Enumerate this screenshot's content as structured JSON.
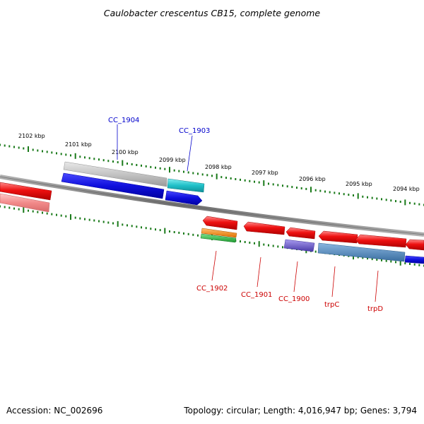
{
  "title": "Caulobacter crescentus CB15, complete genome",
  "footer": {
    "accession": "Accession: NC_002696",
    "summary": "Topology: circular; Length: 4,016,947 bp; Genes: 3,794"
  },
  "ticks": [
    {
      "label": "2102 kbp"
    },
    {
      "label": "2101 kbp"
    },
    {
      "label": "2100 kbp"
    },
    {
      "label": "2099 kbp"
    },
    {
      "label": "2098 kbp"
    },
    {
      "label": "2097 kbp"
    },
    {
      "label": "2096 kbp"
    },
    {
      "label": "2095 kbp"
    },
    {
      "label": "2094 kbp"
    }
  ],
  "forward_labels": [
    {
      "name": "CC_1904"
    },
    {
      "name": "CC_1903"
    }
  ],
  "reverse_labels": [
    {
      "name": "CC_1902"
    },
    {
      "name": "CC_1901"
    },
    {
      "name": "CC_1900"
    },
    {
      "name": "trpC"
    },
    {
      "name": "trpD"
    }
  ],
  "colors": {
    "forward_label": "#0000cc",
    "reverse_label": "#cc0000",
    "tick": "#1a7a1a",
    "backbone": "#808080",
    "cds_blue": "#1010dd",
    "cds_cyan": "#20c0c8",
    "cds_gray": "#c0c0c0",
    "cds_red": "#ee1111",
    "cds_orange": "#f09020",
    "cds_green": "#33bb44",
    "cds_purple": "#6a5acd",
    "cds_steel": "#5a8cc0"
  }
}
